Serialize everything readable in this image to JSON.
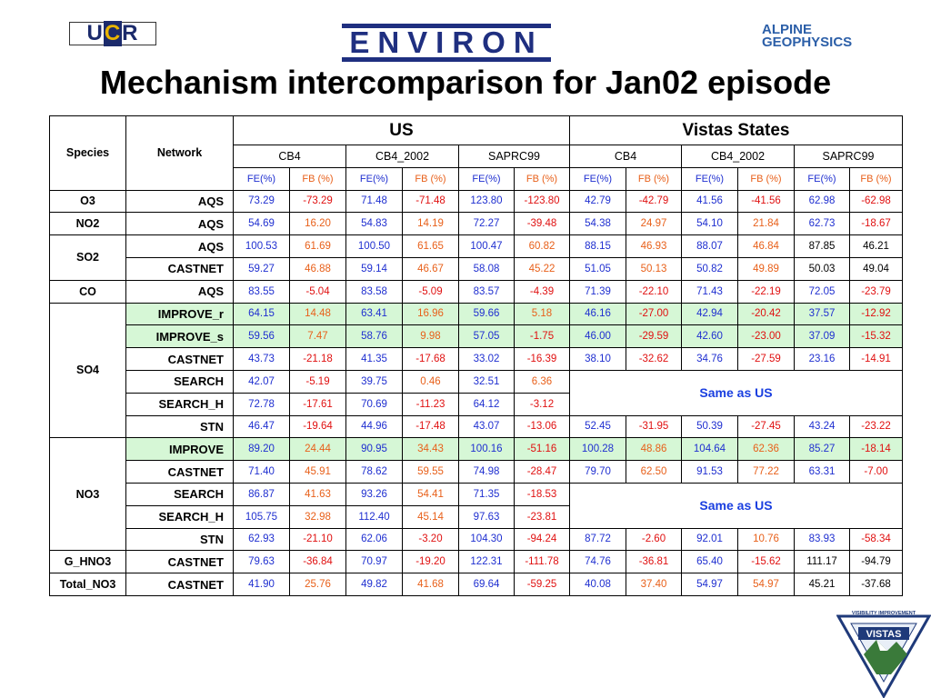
{
  "logos": {
    "ucr": {
      "u": "U",
      "c": "C",
      "r": "R"
    },
    "environ": "ENVIRON",
    "alpine": [
      "ALPINE",
      "GEOPHYSICS"
    ],
    "vistas": {
      "top": "VISIBILITY IMPROVEMENT",
      "main": "VISTAS",
      "ring": "STATE AND TRIBAL ASSOCIATION OF THE SOUTHEAST"
    }
  },
  "title": "Mechanism intercomparison for Jan02 episode",
  "table": {
    "species_header": "Species",
    "network_header": "Network",
    "groups": [
      "US",
      "Vistas States"
    ],
    "mechanisms": [
      "CB4",
      "CB4_2002",
      "SAPRC99",
      "CB4",
      "CB4_2002",
      "SAPRC99"
    ],
    "metric_fe": "FE(%)",
    "metric_fb": "FB (%)",
    "same_as_us": "Same as US"
  }
}
